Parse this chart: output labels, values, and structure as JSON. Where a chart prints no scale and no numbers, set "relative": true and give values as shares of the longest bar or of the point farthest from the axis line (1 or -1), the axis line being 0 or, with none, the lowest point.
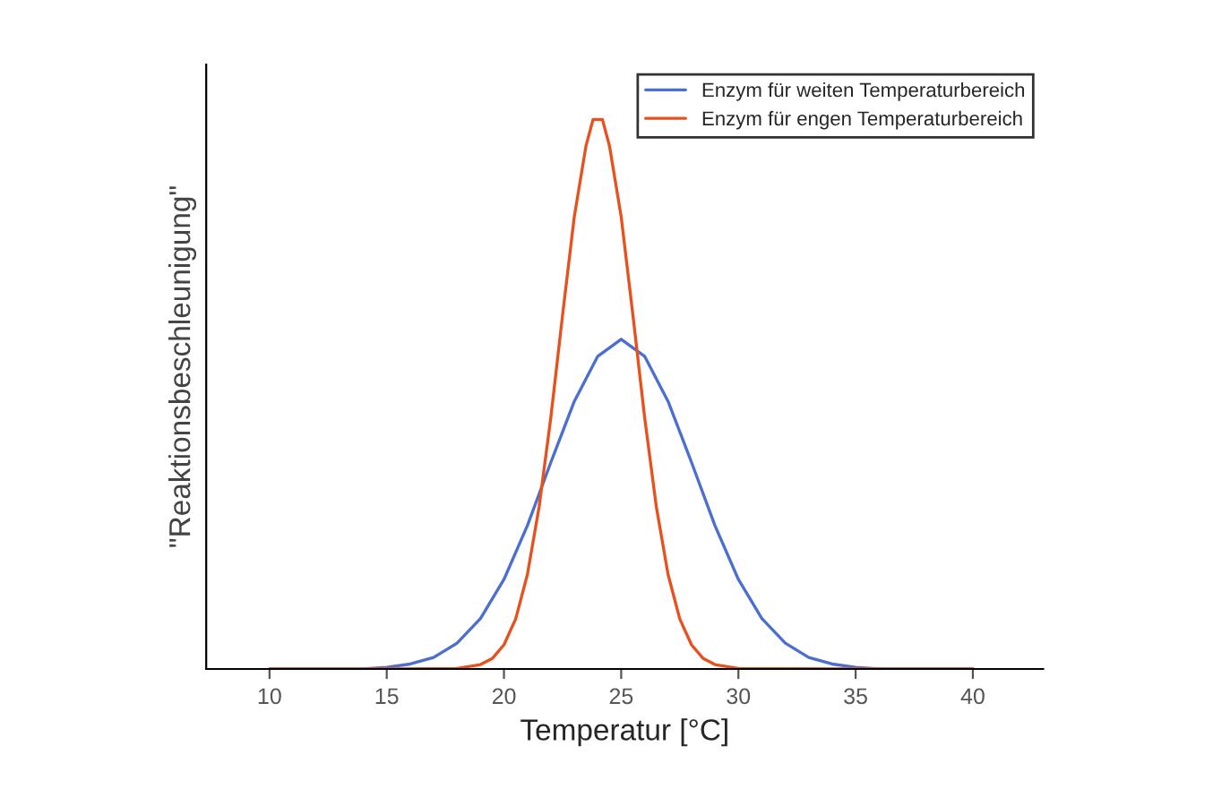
{
  "chart_data": {
    "type": "line",
    "xlabel": "Temperatur [°C]",
    "ylabel": "\"Reaktionsbeschleunigung\"",
    "relative": true,
    "xlim": [
      7.3,
      43
    ],
    "xticks": [
      10,
      15,
      20,
      25,
      30,
      35,
      40
    ],
    "legend": "top right",
    "grid": false,
    "marker": "none",
    "line_style": "solid",
    "series": [
      {
        "name": "Enzym für weiten Temperaturbereich",
        "color": "#4a6fd0",
        "x": [
          10,
          12,
          14,
          15,
          16,
          17,
          18,
          19,
          20,
          21,
          22,
          23,
          24,
          25,
          26,
          27,
          28,
          29,
          30,
          31,
          32,
          33,
          34,
          35,
          36,
          38,
          40
        ],
        "values": [
          0,
          0,
          0,
          0.003,
          0.009,
          0.021,
          0.047,
          0.092,
          0.163,
          0.261,
          0.376,
          0.487,
          0.569,
          0.6,
          0.569,
          0.487,
          0.376,
          0.261,
          0.163,
          0.092,
          0.047,
          0.021,
          0.009,
          0.003,
          0,
          0,
          0
        ]
      },
      {
        "name": "Enzym für engen Temperaturbereich",
        "color": "#e8501e",
        "x": [
          10,
          15,
          18,
          19,
          19.5,
          20,
          20.5,
          21,
          21.5,
          22,
          22.5,
          23,
          23.5,
          23.8,
          24.2,
          24.5,
          25,
          25.5,
          26,
          26.5,
          27,
          27.5,
          28,
          28.5,
          29,
          30,
          35,
          40
        ],
        "values": [
          0,
          0,
          0.001,
          0.008,
          0.019,
          0.044,
          0.091,
          0.172,
          0.295,
          0.458,
          0.644,
          0.823,
          0.952,
          1,
          1,
          0.952,
          0.823,
          0.644,
          0.458,
          0.295,
          0.172,
          0.091,
          0.044,
          0.019,
          0.008,
          0.001,
          0,
          0
        ]
      }
    ]
  }
}
